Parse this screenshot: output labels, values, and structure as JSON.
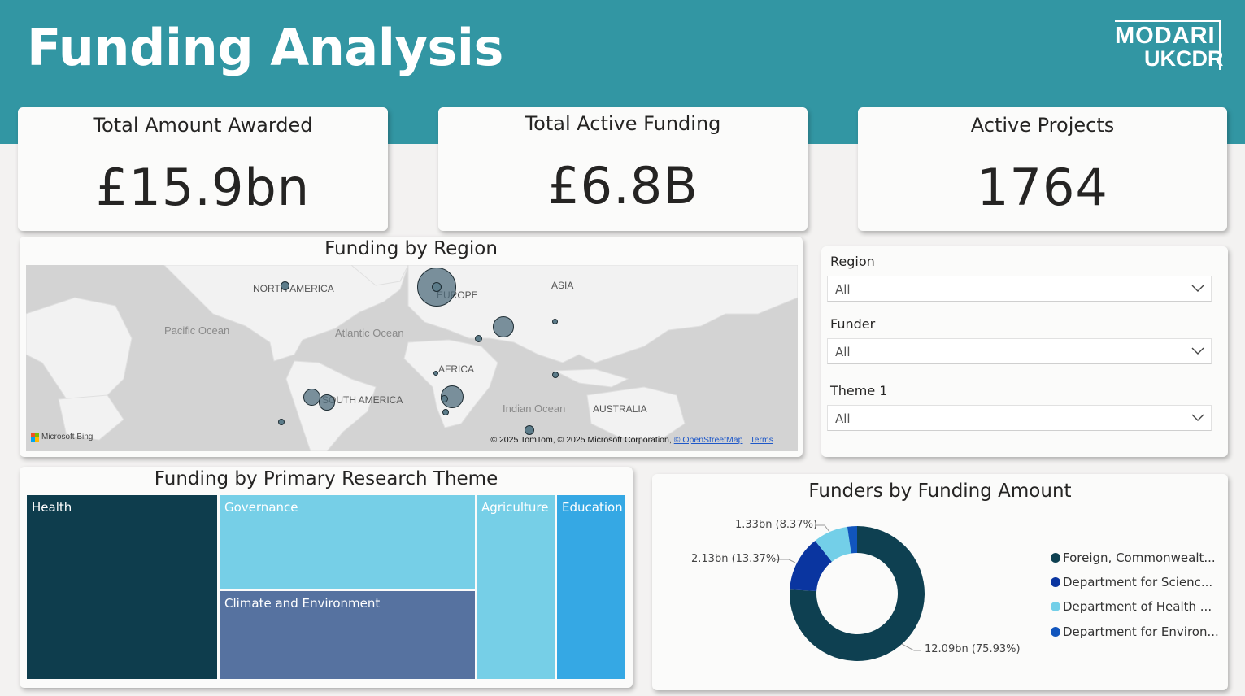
{
  "header": {
    "title": "Funding Analysis",
    "logo_line1": "MODARI",
    "logo_line2": "UKCDR"
  },
  "kpis": [
    {
      "title": "Total Amount Awarded",
      "value": "£15.9bn"
    },
    {
      "title": "Total Active Funding",
      "value": "£6.8B"
    },
    {
      "title": "Active Projects",
      "value": "1764"
    }
  ],
  "map": {
    "title": "Funding by Region",
    "labels": {
      "north_america": "NORTH AMERICA",
      "europe": "EUROPE",
      "asia": "ASIA",
      "pacific": "Pacific Ocean",
      "atlantic": "Atlantic Ocean",
      "africa": "AFRICA",
      "south_america": "SOUTH AMERICA",
      "indian": "Indian Ocean",
      "australia": "AUSTRALIA"
    },
    "bing": "Microsoft Bing",
    "credit_text": "© 2025 TomTom, © 2025 Microsoft Corporation,",
    "credit_link": "© OpenStreetMap",
    "terms": "Terms"
  },
  "slicers": [
    {
      "label": "Region",
      "value": "All"
    },
    {
      "label": "Funder",
      "value": "All"
    },
    {
      "label": "Theme 1",
      "value": "All"
    }
  ],
  "treemap": {
    "title": "Funding by Primary Research Theme",
    "tiles": [
      "Health",
      "Governance",
      "Climate and Environment",
      "Agriculture",
      "Education"
    ]
  },
  "donut": {
    "title": "Funders by Funding Amount",
    "data_labels": [
      "12.09bn (75.93%)",
      "2.13bn (13.37%)",
      "1.33bn (8.37%)"
    ],
    "legend": [
      {
        "label": "Foreign, Commonwealt...",
        "color": "#0e4051"
      },
      {
        "label": "Department for Scienc...",
        "color": "#0a35a0"
      },
      {
        "label": "Department of Health ...",
        "color": "#73cfe8"
      },
      {
        "label": "Department for Environ...",
        "color": "#1155bd"
      }
    ]
  },
  "chart_data": {
    "type": "pie",
    "title": "Funders by Funding Amount",
    "categories": [
      "Foreign, Commonwealt...",
      "Department for Scienc...",
      "Department of Health ...",
      "Department for Environ..."
    ],
    "values": [
      12.09,
      2.13,
      1.33,
      0.37
    ],
    "percent": [
      75.93,
      13.37,
      8.37,
      2.33
    ],
    "legend_position": "right"
  },
  "colors": {
    "banner": "#3296a3",
    "health": "#0e3d4d",
    "governance": "#76cfe7",
    "climate": "#5672a0",
    "agriculture": "#76cfe7",
    "education": "#35a8e4"
  }
}
